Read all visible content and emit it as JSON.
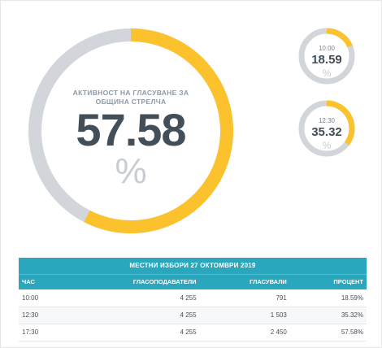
{
  "main_gauge": {
    "title": "АКТИВНОСТ НА ГЛАСУВАНЕ ЗА ОБЩИНА СТРЕЛЧА",
    "value": "57.58",
    "unit": "%",
    "fraction": 0.5758,
    "color_fill": "#fbc22d",
    "color_track": "#d2d6da"
  },
  "small_gauges": [
    {
      "time": "10:00",
      "value": "18.59",
      "unit": "%",
      "fraction": 0.1859
    },
    {
      "time": "12:30",
      "value": "35.32",
      "unit": "%",
      "fraction": 0.3532
    }
  ],
  "table": {
    "caption": "МЕСТНИ ИЗБОРИ 27 ОКТОМВРИ 2019",
    "headers": [
      "ЧАС",
      "ГЛАСОПОДАВАТЕЛИ",
      "ГЛАСУВАЛИ",
      "ПРОЦЕНТ"
    ],
    "rows": [
      [
        "10:00",
        "4 255",
        "791",
        "18.59%"
      ],
      [
        "12:30",
        "4 255",
        "1 503",
        "35.32%"
      ],
      [
        "17:30",
        "4 255",
        "2 450",
        "57.58%"
      ]
    ],
    "header_color": "#2aa7bd"
  }
}
